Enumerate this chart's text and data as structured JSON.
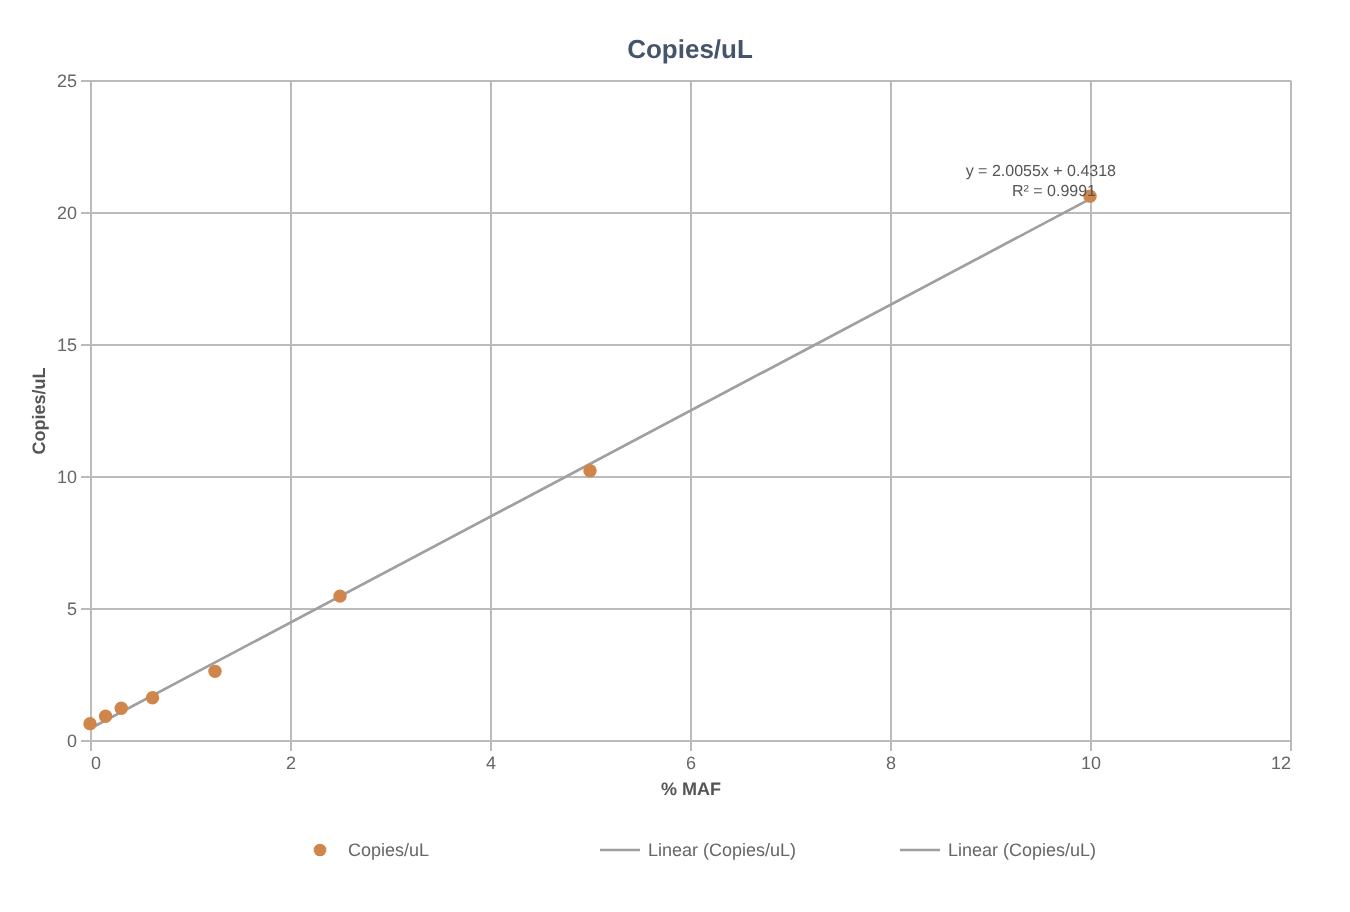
{
  "chart_data": {
    "type": "scatter",
    "title": "Copies/uL",
    "xlabel": "% MAF",
    "ylabel": "Copies/uL",
    "xlim": [
      0,
      12
    ],
    "xticks": [
      0,
      2,
      4,
      6,
      8,
      10,
      12
    ],
    "ylim": [
      0,
      25
    ],
    "yticks": [
      0,
      5,
      10,
      15,
      20,
      25
    ],
    "grid": true,
    "legend": "bottom",
    "series": [
      {
        "name": "Copies/uL",
        "marker": "circle",
        "color": "#d0864a",
        "x": [
          0,
          0.156,
          0.3125,
          0.625,
          1.25,
          2.5,
          5,
          10
        ],
        "values": [
          0.62,
          0.9,
          1.2,
          1.6,
          2.6,
          5.45,
          10.2,
          20.6
        ]
      },
      {
        "name": "Linear (Copies/uL)",
        "type": "line",
        "color": "#a0a0a0",
        "line_style": "solid",
        "x": [
          0,
          10
        ],
        "values": [
          0.43,
          20.49
        ]
      },
      {
        "name": "Linear (Copies/uL)",
        "type": "line",
        "color": "#a0a0a0",
        "line_style": "solid",
        "x": [
          0,
          10
        ],
        "values": [
          0.43,
          20.49
        ]
      }
    ],
    "annotations": [
      "y = 2.0055x + 0.4318",
      "R² = 0.9991"
    ]
  }
}
